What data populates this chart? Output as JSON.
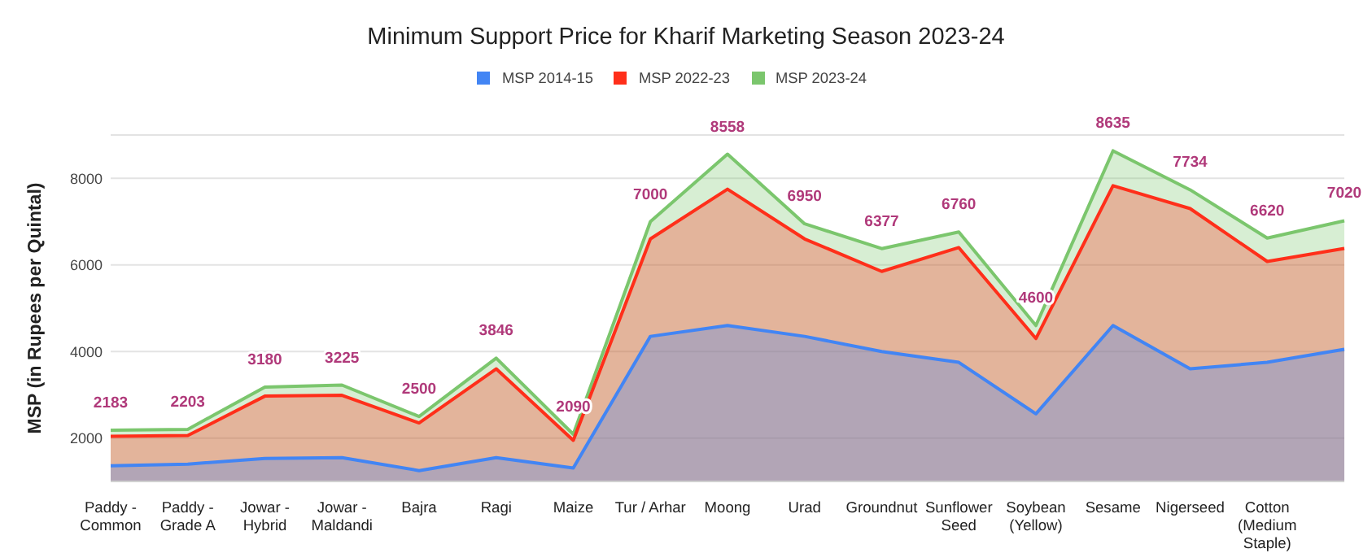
{
  "chart_data": {
    "type": "area",
    "title": "Minimum Support Price for Kharif Marketing Season 2023-24",
    "ylabel": "MSP (in Rupees per Quintal)",
    "categories": [
      "Paddy - Common",
      "Paddy - Grade A",
      "Jowar - Hybrid",
      "Jowar - Maldandi",
      "Bajra",
      "Ragi",
      "Maize",
      "Tur / Arhar",
      "Moong",
      "Urad",
      "Groundnut",
      "Sunflower Seed",
      "Soybean (Yellow)",
      "Sesame",
      "Nigerseed",
      "Cotton (Medium Staple)",
      null
    ],
    "series": [
      {
        "name": "MSP 2014-15",
        "color": "#4285f4",
        "values": [
          1360,
          1400,
          1530,
          1550,
          1250,
          1550,
          1310,
          4350,
          4600,
          4350,
          4000,
          3750,
          2560,
          4600,
          3600,
          3750,
          4050
        ]
      },
      {
        "name": "MSP 2022-23",
        "color": "#ff2f1a",
        "values": [
          2040,
          2060,
          2970,
          2990,
          2350,
          3600,
          1950,
          6600,
          7750,
          6600,
          5850,
          6400,
          4300,
          7830,
          7300,
          6080,
          6380
        ]
      },
      {
        "name": "MSP 2023-24",
        "color": "#7bc66d",
        "values": [
          2183,
          2203,
          3180,
          3225,
          2500,
          3846,
          2090,
          7000,
          8558,
          6950,
          6377,
          6760,
          4600,
          8635,
          7734,
          6620,
          7020
        ],
        "value_labels": [
          "2183",
          "2203",
          "3180",
          "3225",
          "2500",
          "3846",
          "2090",
          "7000",
          "8558",
          "6950",
          "6377",
          "6760",
          "4600",
          "8635",
          "7734",
          "6620",
          "7020"
        ]
      }
    ],
    "ylim": [
      1000,
      9000
    ],
    "yticks": [
      2000,
      4000,
      6000,
      8000
    ],
    "grid": "y",
    "legend": "top"
  }
}
